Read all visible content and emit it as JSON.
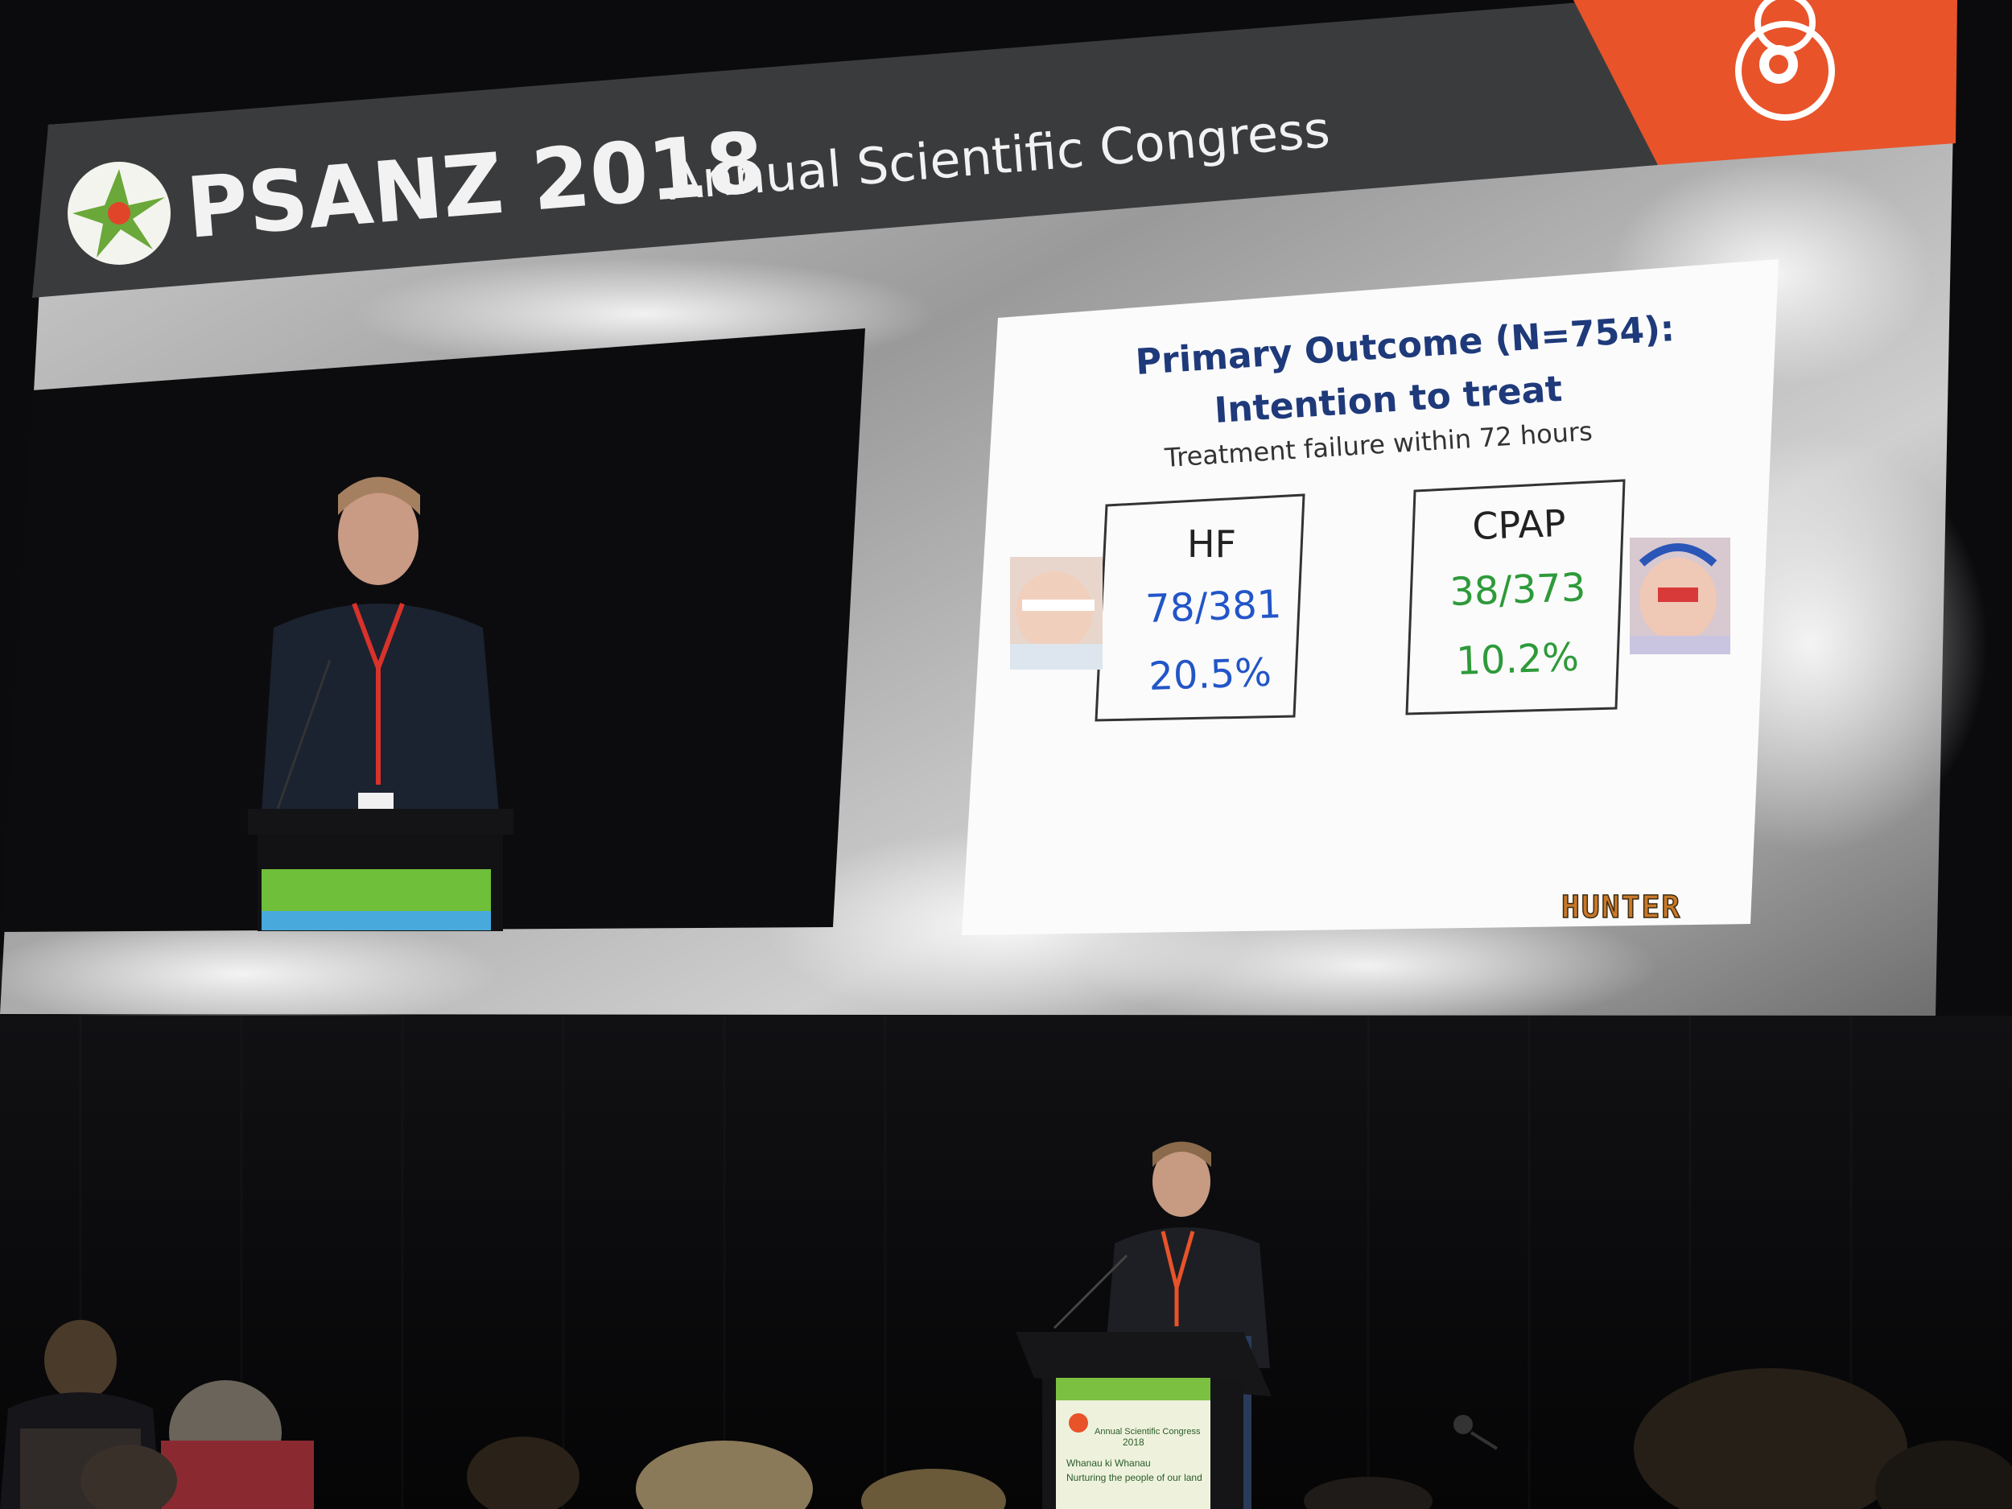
{
  "header": {
    "brand": "PSANZ 2018",
    "subtitle": "Annual Scientific Congress"
  },
  "slide": {
    "title_line1": "Primary Outcome (N=754):",
    "title_line2": "Intention to treat",
    "subtitle": "Treatment failure within 72 hours",
    "hf": {
      "label": "HF",
      "count": "78/381",
      "percent": "20.5%"
    },
    "cpap": {
      "label": "CPAP",
      "count": "38/373",
      "percent": "10.2%"
    },
    "logo_text": "HUNTER"
  },
  "podium": {
    "line1": "Annual Scientific Congress",
    "year": "2018",
    "line2": "Whanau ki Whanau",
    "line3": "Nurturing the people of our land"
  },
  "colors": {
    "hf_blue": "#2255c8",
    "cpap_green": "#2e9a3a",
    "title_navy": "#1f3a7a",
    "accent_orange": "#e8532a"
  }
}
